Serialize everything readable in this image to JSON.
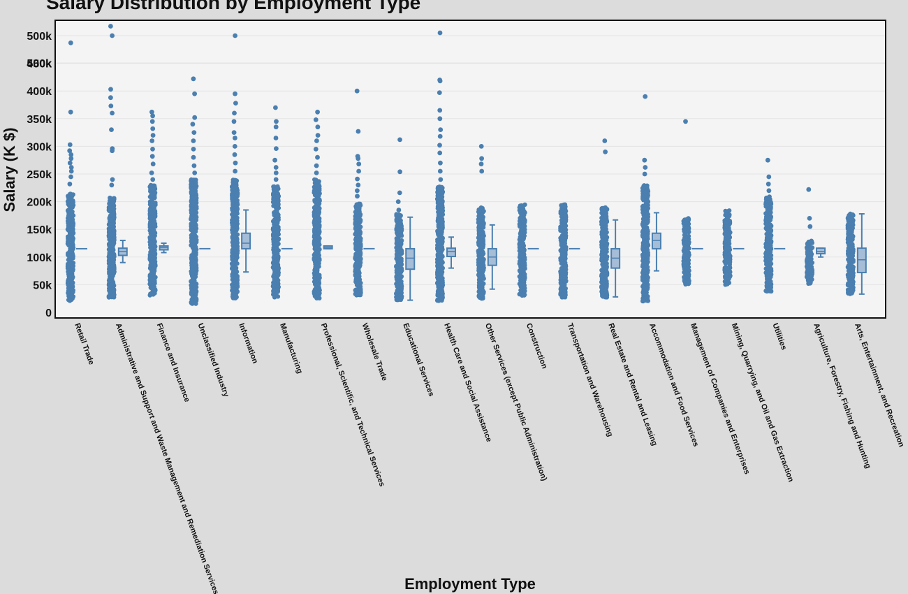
{
  "chart_data": {
    "type": "box",
    "title": "Salary Distribution by Employment Type",
    "xlabel": "Employment Type",
    "ylabel": "Salary (K $)",
    "yticks": [
      "0",
      "50k",
      "100k",
      "150k",
      "200k",
      "250k",
      "300k",
      "350k",
      "400k",
      "450k",
      "500k",
      "500k"
    ],
    "ylim": [
      0,
      505
    ],
    "grid": "horizontal",
    "colors": {
      "background": "#dcdcdc",
      "plot_background": "#f4f4f4",
      "points": "#4a7fb0",
      "box_fill": "#a6bdd7",
      "box_line": "#4a7fb0",
      "grid": "#e3e3e3"
    },
    "categories": [
      {
        "name": "Retail Trade",
        "range": [
          20,
          215
        ],
        "box": [
          115,
          115,
          115
        ],
        "whiskers": [
          115,
          115
        ],
        "outliers": [
          232,
          245,
          255,
          262,
          270,
          278,
          285,
          292,
          303,
          362,
          487
        ]
      },
      {
        "name": "Administrative and Support and Waste Management and Remediation Services",
        "range": [
          27,
          212
        ],
        "box": [
          103,
          110,
          116
        ],
        "whiskers": [
          90,
          130
        ],
        "outliers": [
          230,
          240,
          292,
          296,
          330,
          360,
          373,
          388,
          403,
          517,
          500
        ]
      },
      {
        "name": "Finance and Insurance",
        "range": [
          30,
          230
        ],
        "box": [
          113,
          117,
          120
        ],
        "whiskers": [
          108,
          125
        ],
        "outliers": [
          240,
          252,
          268,
          282,
          295,
          310,
          320,
          332,
          345,
          355,
          362
        ]
      },
      {
        "name": "Unclassified Industry",
        "range": [
          15,
          240
        ],
        "box": [
          115,
          115,
          115
        ],
        "whiskers": [
          115,
          115
        ],
        "outliers": [
          252,
          265,
          280,
          295,
          310,
          325,
          340,
          352,
          395,
          422
        ]
      },
      {
        "name": "Information",
        "range": [
          25,
          240
        ],
        "box": [
          115,
          125,
          143
        ],
        "whiskers": [
          73,
          185
        ],
        "outliers": [
          255,
          270,
          285,
          300,
          315,
          325,
          345,
          360,
          378,
          395,
          500
        ]
      },
      {
        "name": "Manufacturing",
        "range": [
          27,
          228
        ],
        "box": [
          115,
          115,
          115
        ],
        "whiskers": [
          115,
          115
        ],
        "outliers": [
          240,
          252,
          262,
          275,
          296,
          315,
          335,
          345,
          370
        ]
      },
      {
        "name": "Professional, Scientific, and Technical Services",
        "range": [
          25,
          240
        ],
        "box": [
          115,
          117,
          120
        ],
        "whiskers": [
          115,
          120
        ],
        "outliers": [
          252,
          265,
          280,
          295,
          310,
          320,
          335,
          348,
          362
        ]
      },
      {
        "name": "Wholesale Trade",
        "range": [
          30,
          198
        ],
        "box": [
          115,
          115,
          115
        ],
        "whiskers": [
          115,
          115
        ],
        "outliers": [
          210,
          220,
          230,
          241,
          255,
          268,
          278,
          282,
          327,
          400
        ]
      },
      {
        "name": "Educational Services",
        "range": [
          22,
          178
        ],
        "box": [
          78,
          98,
          115
        ],
        "whiskers": [
          22,
          172
        ],
        "outliers": [
          185,
          200,
          216,
          254,
          312
        ]
      },
      {
        "name": "Health Care and Social Assistance",
        "range": [
          20,
          228
        ],
        "box": [
          101,
          110,
          116
        ],
        "whiskers": [
          80,
          136
        ],
        "outliers": [
          240,
          255,
          270,
          288,
          302,
          318,
          330,
          350,
          365,
          397,
          418,
          420,
          505
        ]
      },
      {
        "name": "Other Services (except Public Administration)",
        "range": [
          25,
          190
        ],
        "box": [
          85,
          100,
          115
        ],
        "whiskers": [
          42,
          158
        ],
        "outliers": [
          255,
          268,
          278,
          300
        ]
      },
      {
        "name": "Construction",
        "range": [
          30,
          195
        ],
        "box": [
          115,
          115,
          115
        ],
        "whiskers": [
          115,
          115
        ],
        "outliers": []
      },
      {
        "name": "Transportation and Warehousing",
        "range": [
          27,
          195
        ],
        "box": [
          115,
          115,
          115
        ],
        "whiskers": [
          115,
          115
        ],
        "outliers": []
      },
      {
        "name": "Real Estate and Rental and Leasing",
        "range": [
          27,
          190
        ],
        "box": [
          80,
          98,
          115
        ],
        "whiskers": [
          28,
          167
        ],
        "outliers": [
          290,
          310
        ]
      },
      {
        "name": "Accommodation and Food Services",
        "range": [
          20,
          230
        ],
        "box": [
          115,
          130,
          143
        ],
        "whiskers": [
          75,
          180
        ],
        "outliers": [
          250,
          262,
          275,
          390
        ]
      },
      {
        "name": "Management of Companies and Enterprises",
        "range": [
          50,
          170
        ],
        "box": [
          115,
          115,
          115
        ],
        "whiskers": [
          115,
          115
        ],
        "outliers": [
          345
        ]
      },
      {
        "name": "Mining, Quarrying, and Oil and Gas Extraction",
        "range": [
          50,
          185
        ],
        "box": [
          115,
          115,
          115
        ],
        "whiskers": [
          115,
          115
        ],
        "outliers": []
      },
      {
        "name": "Utilities",
        "range": [
          38,
          210
        ],
        "box": [
          115,
          115,
          115
        ],
        "whiskers": [
          115,
          115
        ],
        "outliers": [
          220,
          232,
          245,
          275
        ]
      },
      {
        "name": "Agriculture, Forestry, Fishing and Hunting",
        "range": [
          52,
          130
        ],
        "box": [
          106,
          110,
          116
        ],
        "whiskers": [
          100,
          116
        ],
        "outliers": [
          155,
          170,
          222
        ]
      },
      {
        "name": "Arts, Entertainment, and Recreation",
        "range": [
          33,
          180
        ],
        "box": [
          72,
          95,
          116
        ],
        "whiskers": [
          33,
          178
        ],
        "outliers": []
      }
    ]
  }
}
